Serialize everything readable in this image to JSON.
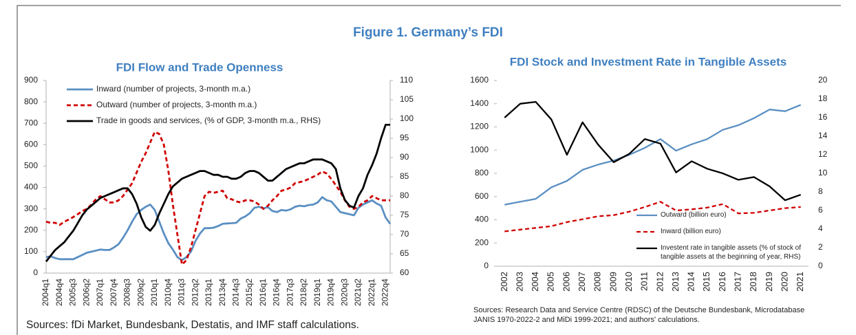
{
  "title": "Figure 1. Germany’s FDI",
  "chart_data": [
    {
      "type": "line",
      "title": "FDI Flow and Trade Openness",
      "source": "Sources: fDi Market, Bundesbank, Destatis, and IMF staff calculations.",
      "categories": [
        "2004q1",
        null,
        null,
        "2004q4",
        null,
        null,
        "2005q3",
        null,
        null,
        "2006q2",
        null,
        null,
        "2007q1",
        null,
        null,
        "2007q4",
        null,
        null,
        "2008q3",
        null,
        null,
        "2009q2",
        null,
        null,
        "2010q1",
        null,
        null,
        "2010q4",
        null,
        null,
        "2011q3",
        null,
        null,
        "2012q2",
        null,
        null,
        "2013q1",
        null,
        null,
        "2013q4",
        null,
        null,
        "2014q3",
        null,
        null,
        "2015q2",
        null,
        null,
        "2016q1",
        null,
        null,
        "2016q4",
        null,
        null,
        "2017q3",
        null,
        null,
        "2018q2",
        null,
        null,
        "2019q1",
        null,
        null,
        "2019q4",
        null,
        null,
        "2020q3",
        null,
        null,
        "2021q2",
        null,
        null,
        "2022q1",
        null,
        null,
        "2022q4",
        null
      ],
      "ylim": [
        0,
        900
      ],
      "yticks": [
        0,
        100,
        200,
        300,
        400,
        500,
        600,
        700,
        800,
        900
      ],
      "y2lim": [
        60,
        110
      ],
      "y2ticks": [
        60,
        65,
        70,
        75,
        80,
        85,
        90,
        95,
        100,
        105,
        110
      ],
      "legend": "upper left",
      "series": [
        {
          "name": "Inward (number of projects, 3-month m.a.)",
          "color": "#5a8fc2",
          "line_style": "solid",
          "values": [
            75,
            78,
            70,
            65,
            65,
            65,
            65,
            75,
            85,
            95,
            100,
            105,
            110,
            108,
            108,
            120,
            135,
            165,
            200,
            240,
            275,
            295,
            310,
            320,
            295,
            240,
            185,
            140,
            110,
            75,
            60,
            75,
            100,
            150,
            185,
            210,
            210,
            212,
            220,
            230,
            232,
            233,
            235,
            255,
            265,
            280,
            305,
            310,
            303,
            308,
            290,
            285,
            295,
            292,
            298,
            310,
            315,
            312,
            318,
            320,
            330,
            355,
            340,
            335,
            310,
            285,
            280,
            275,
            270,
            305,
            320,
            330,
            340,
            325,
            315,
            260,
            230
          ]
        },
        {
          "name": "Outward (number of projects, 3-month m.a.)",
          "color": "#d00000",
          "line_style": "dashed",
          "values": [
            240,
            235,
            235,
            225,
            240,
            250,
            262,
            275,
            290,
            300,
            320,
            345,
            360,
            345,
            330,
            330,
            340,
            360,
            390,
            420,
            470,
            520,
            560,
            610,
            660,
            650,
            600,
            480,
            320,
            180,
            40,
            60,
            120,
            200,
            280,
            360,
            380,
            375,
            380,
            385,
            350,
            345,
            335,
            330,
            340,
            340,
            335,
            320,
            300,
            315,
            340,
            360,
            385,
            390,
            400,
            420,
            425,
            430,
            440,
            450,
            460,
            475,
            465,
            440,
            410,
            380,
            340,
            310,
            300,
            310,
            330,
            340,
            360,
            350,
            340,
            340,
            340
          ]
        },
        {
          "name": "Trade in goods and services, (% of GDP, 3-month m.a., RHS)",
          "color": "#000000",
          "line_style": "solid",
          "axis": "y2",
          "values": [
            63,
            64.5,
            66,
            67,
            68,
            69.5,
            71,
            73,
            75,
            76.5,
            77.5,
            78.5,
            79.5,
            80,
            80.5,
            81,
            81.5,
            82,
            82,
            80.5,
            78,
            74.5,
            72,
            71,
            72.5,
            75.5,
            78,
            80.5,
            82.5,
            83.5,
            84.5,
            85,
            85.5,
            86,
            86.5,
            86.5,
            86,
            85.5,
            85.5,
            85,
            85,
            84.5,
            84.5,
            85,
            86,
            86.5,
            86.5,
            86,
            85,
            84,
            84,
            85,
            86,
            87,
            87.5,
            88,
            88.5,
            88.5,
            89,
            89.5,
            89.5,
            89.5,
            89,
            88.5,
            87,
            82,
            79,
            77.5,
            77,
            80,
            82,
            85.5,
            88,
            91,
            95,
            98.5,
            98.5
          ]
        }
      ]
    },
    {
      "type": "line",
      "title": "FDI Stock and Investment Rate in Tangible Assets",
      "source": "Sources: Research Data and Service Centre (RDSC) of the Deutsche Bundesbank, Microdatabase JANIS 1970-2022-2 and MiDi 1999-2021; and authors' calculations.",
      "categories": [
        "2002",
        "2003",
        "2004",
        "2005",
        "2006",
        "2007",
        "2008",
        "2009",
        "2010",
        "2011",
        "2012",
        "2013",
        "2014",
        "2015",
        "2016",
        "2017",
        "2018",
        "2019",
        "2020",
        "2021"
      ],
      "ylim": [
        0,
        1600
      ],
      "yticks": [
        0,
        200,
        400,
        600,
        800,
        1000,
        1200,
        1400,
        1600
      ],
      "y2lim": [
        0,
        20
      ],
      "y2ticks": [
        0,
        2,
        4,
        6,
        8,
        10,
        12,
        14,
        16,
        18,
        20
      ],
      "legend": "lower right",
      "series": [
        {
          "name": "Outward (billion euro)",
          "color": "#5a8fc2",
          "line_style": "solid",
          "values": [
            530,
            555,
            580,
            680,
            735,
            830,
            875,
            910,
            960,
            1020,
            1095,
            995,
            1050,
            1095,
            1175,
            1215,
            1275,
            1350,
            1335,
            1390
          ]
        },
        {
          "name": "Inward (billion euro)",
          "color": "#d00000",
          "line_style": "dashed",
          "values": [
            300,
            315,
            330,
            345,
            380,
            405,
            430,
            440,
            470,
            510,
            555,
            480,
            490,
            505,
            535,
            455,
            460,
            480,
            500,
            510
          ]
        },
        {
          "name": "Investent rate in tangible assets (% of stock of tangible assets at the beginning of year, RHS)",
          "color": "#000000",
          "line_style": "solid",
          "axis": "y2",
          "values": [
            16,
            17.5,
            17.7,
            15.8,
            12,
            15.5,
            13.1,
            11.2,
            12.1,
            13.7,
            13.2,
            10.1,
            11.3,
            10.5,
            10,
            9.3,
            9.6,
            8.6,
            7.1,
            7.7
          ]
        }
      ]
    }
  ]
}
